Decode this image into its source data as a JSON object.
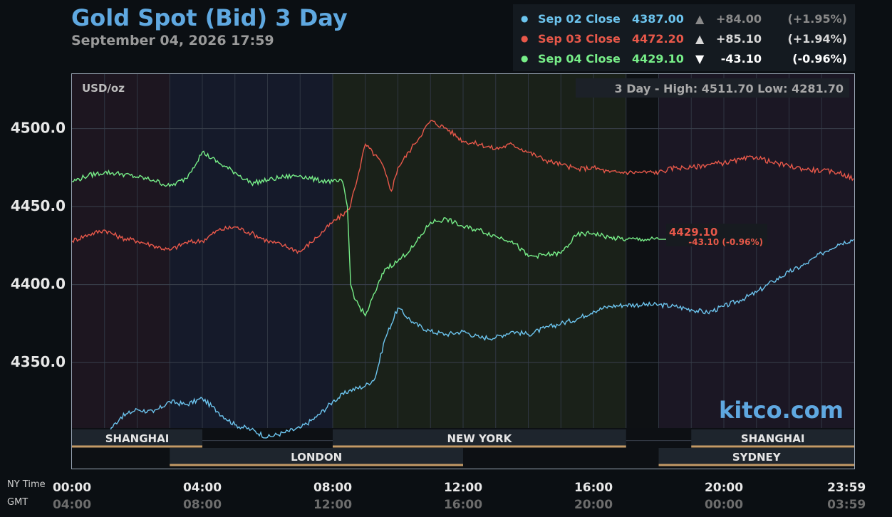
{
  "title": "Gold Spot (Bid) 3 Day",
  "subtitle": "September 04, 2026 17:59",
  "legend": [
    {
      "label": "Sep 02 Close",
      "close": "4387.00",
      "arrow": "▲",
      "change": "+84.00",
      "percent": "(+1.95%)",
      "color": "#6cc4ee",
      "changeColor": "#8a8a8a"
    },
    {
      "label": "Sep 03 Close",
      "close": "4472.20",
      "arrow": "▲",
      "change": "+85.10",
      "percent": "(+1.94%)",
      "color": "#e8584a",
      "changeColor": "#d8d8d8"
    },
    {
      "label": "Sep 04 Close",
      "close": "4429.10",
      "arrow": "▼",
      "change": "-43.10",
      "percent": "(-0.96%)",
      "color": "#77ee88",
      "changeColor": "#ffffff"
    }
  ],
  "units_label": "USD/oz",
  "high_low": "3 Day - High: 4511.70  Low: 4281.70",
  "watermark": "kitco.com",
  "current": {
    "price": "4429.10",
    "change": "-43.10 (-0.96%)",
    "color": "#e8584a"
  },
  "sessions": {
    "row1": [
      {
        "name": "SHANGHAI",
        "start": 0,
        "end": 4
      },
      {
        "name": "NEW YORK",
        "start": 8,
        "end": 17
      },
      {
        "name": "SHANGHAI",
        "start": 19,
        "end": 24
      }
    ],
    "row2": [
      {
        "name": "LONDON",
        "start": 3,
        "end": 12
      },
      {
        "name": "SYDNEY",
        "start": 18,
        "end": 24
      }
    ]
  },
  "axis_labels": {
    "ny_time": "NY Time",
    "gmt": "GMT"
  },
  "x_ticks_ny": [
    "00:00",
    "04:00",
    "08:00",
    "12:00",
    "16:00",
    "20:00",
    "23:59"
  ],
  "x_ticks_gmt": [
    "04:00",
    "08:00",
    "12:00",
    "16:00",
    "20:00",
    "00:00",
    "03:59"
  ],
  "chart_data": {
    "type": "line",
    "title": "Gold Spot (Bid) 3 Day",
    "ylabel": "USD/oz",
    "xlabel": "NY Time",
    "xlim": [
      0,
      24
    ],
    "ylim": [
      4282,
      4535
    ],
    "y_ticks": [
      4350.0,
      4400.0,
      4450.0,
      4500.0
    ],
    "grid": true,
    "series": [
      {
        "name": "Sep 02 Close",
        "color": "#6cc4ee",
        "x": [
          0,
          0.5,
          1,
          1.5,
          2,
          2.5,
          3,
          3.5,
          4,
          4.5,
          5,
          5.5,
          6,
          6.5,
          7,
          7.5,
          8,
          8.5,
          9,
          9.3,
          9.6,
          10,
          10.5,
          11,
          11.5,
          12,
          12.5,
          13,
          13.5,
          14,
          14.5,
          15,
          15.5,
          16,
          16.5,
          17,
          17.5,
          18,
          18.5,
          19,
          19.5,
          20,
          20.5,
          21,
          21.5,
          22,
          22.5,
          23,
          23.5,
          23.98
        ],
        "y": [
          4300,
          4300,
          4303,
          4315,
          4320,
          4318,
          4325,
          4323,
          4327,
          4318,
          4310,
          4307,
          4302,
          4305,
          4308,
          4315,
          4325,
          4332,
          4335,
          4340,
          4365,
          4385,
          4375,
          4370,
          4368,
          4370,
          4366,
          4366,
          4370,
          4368,
          4372,
          4375,
          4378,
          4383,
          4386,
          4387,
          4387,
          4387,
          4386,
          4384,
          4382,
          4386,
          4390,
          4395,
          4402,
          4408,
          4413,
          4420,
          4426,
          4429
        ]
      },
      {
        "name": "Sep 03 Close",
        "color": "#e8584a",
        "x": [
          0,
          0.5,
          1,
          1.5,
          2,
          2.5,
          3,
          3.5,
          4,
          4.5,
          5,
          5.5,
          6,
          6.5,
          7,
          7.5,
          8,
          8.5,
          8.8,
          9,
          9.5,
          9.8,
          10,
          10.5,
          11,
          11.5,
          12,
          12.5,
          13,
          13.5,
          14,
          14.5,
          15,
          15.5,
          16,
          16.5,
          17,
          17.5,
          18,
          18.5,
          19,
          19.5,
          20,
          20.5,
          21,
          21.5,
          22,
          22.5,
          23,
          23.5,
          23.98
        ],
        "y": [
          4428,
          4432,
          4435,
          4430,
          4428,
          4425,
          4422,
          4427,
          4428,
          4435,
          4437,
          4433,
          4428,
          4425,
          4421,
          4430,
          4440,
          4448,
          4472,
          4490,
          4478,
          4460,
          4475,
          4490,
          4505,
          4500,
          4492,
          4490,
          4487,
          4490,
          4485,
          4480,
          4477,
          4474,
          4475,
          4472,
          4472,
          4472,
          4472,
          4475,
          4475,
          4477,
          4478,
          4480,
          4482,
          4478,
          4476,
          4474,
          4473,
          4472,
          4468
        ]
      },
      {
        "name": "Sep 04 Close",
        "color": "#77ee88",
        "x": [
          0,
          0.5,
          1,
          1.5,
          2,
          2.5,
          3,
          3.5,
          4,
          4.5,
          5,
          5.5,
          6,
          6.5,
          7,
          7.5,
          8,
          8.3,
          8.45,
          8.55,
          8.7,
          9,
          9.3,
          9.6,
          10,
          10.5,
          11,
          11.5,
          12,
          12.5,
          13,
          13.5,
          14,
          14.5,
          15,
          15.5,
          16,
          16.5,
          17,
          17.5,
          18
        ],
        "y": [
          4466,
          4470,
          4472,
          4471,
          4469,
          4467,
          4463,
          4468,
          4485,
          4478,
          4472,
          4465,
          4467,
          4469,
          4470,
          4467,
          4466,
          4466,
          4450,
          4400,
          4390,
          4380,
          4395,
          4410,
          4415,
          4425,
          4440,
          4442,
          4437,
          4435,
          4431,
          4428,
          4418,
          4419,
          4420,
          4432,
          4433,
          4430,
          4429,
          4429,
          4429
        ]
      }
    ]
  }
}
